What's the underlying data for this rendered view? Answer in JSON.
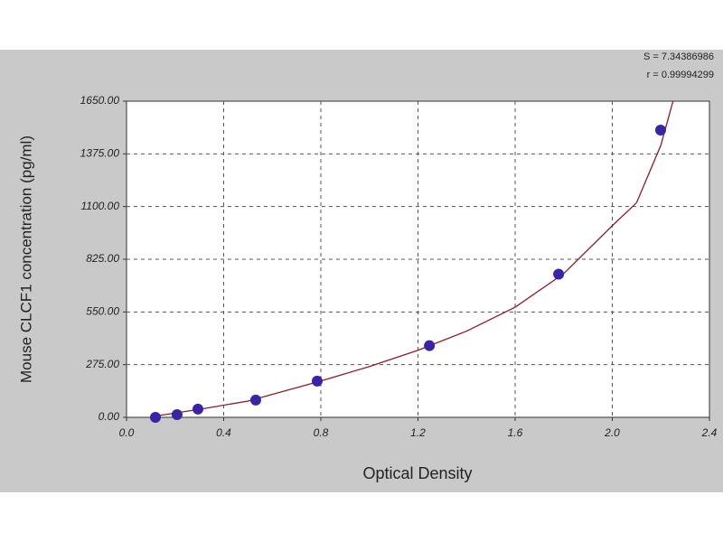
{
  "chart_data": {
    "type": "scatter",
    "xlabel": "Optical Density",
    "ylabel": "Mouse CLCF1 concentration (pg/ml)",
    "annotations": [
      "S = 7.34386986",
      "r = 0.99994299"
    ],
    "xlim": [
      0,
      2.4
    ],
    "ylim": [
      0,
      1650
    ],
    "xticks": [
      {
        "value": 0,
        "label": "0.0"
      },
      0.4,
      0.8,
      1.2,
      1.6,
      {
        "value": 2,
        "label": "2.0"
      },
      2.4
    ],
    "yticks": [
      {
        "value": 0,
        "label": "0.00"
      },
      {
        "value": 275,
        "label": "275.00"
      },
      {
        "value": 550,
        "label": "550.00"
      },
      {
        "value": 825,
        "label": "825.00"
      },
      {
        "value": 1100,
        "label": "1100.00"
      },
      {
        "value": 1375,
        "label": "1375.00"
      },
      {
        "value": 1650,
        "label": "1650.00"
      }
    ],
    "grid": true,
    "series": [
      {
        "kind": "points",
        "color": "#3b23a6",
        "x": [
          0.119,
          0.208,
          0.294,
          0.532,
          0.785,
          1.247,
          1.779,
          2.199
        ],
        "values": [
          0,
          14,
          43,
          90,
          189,
          374,
          747,
          1499
        ]
      },
      {
        "kind": "fit",
        "color": "#8b1c2a",
        "x": [
          0.1,
          0.3,
          0.5,
          0.8,
          1.0,
          1.2,
          1.4,
          1.6,
          1.8,
          2.0,
          2.1,
          2.2,
          2.25
        ],
        "values": [
          3,
          42,
          85,
          190,
          265,
          350,
          450,
          575,
          750,
          1000,
          1120,
          1420,
          1650
        ]
      }
    ]
  }
}
